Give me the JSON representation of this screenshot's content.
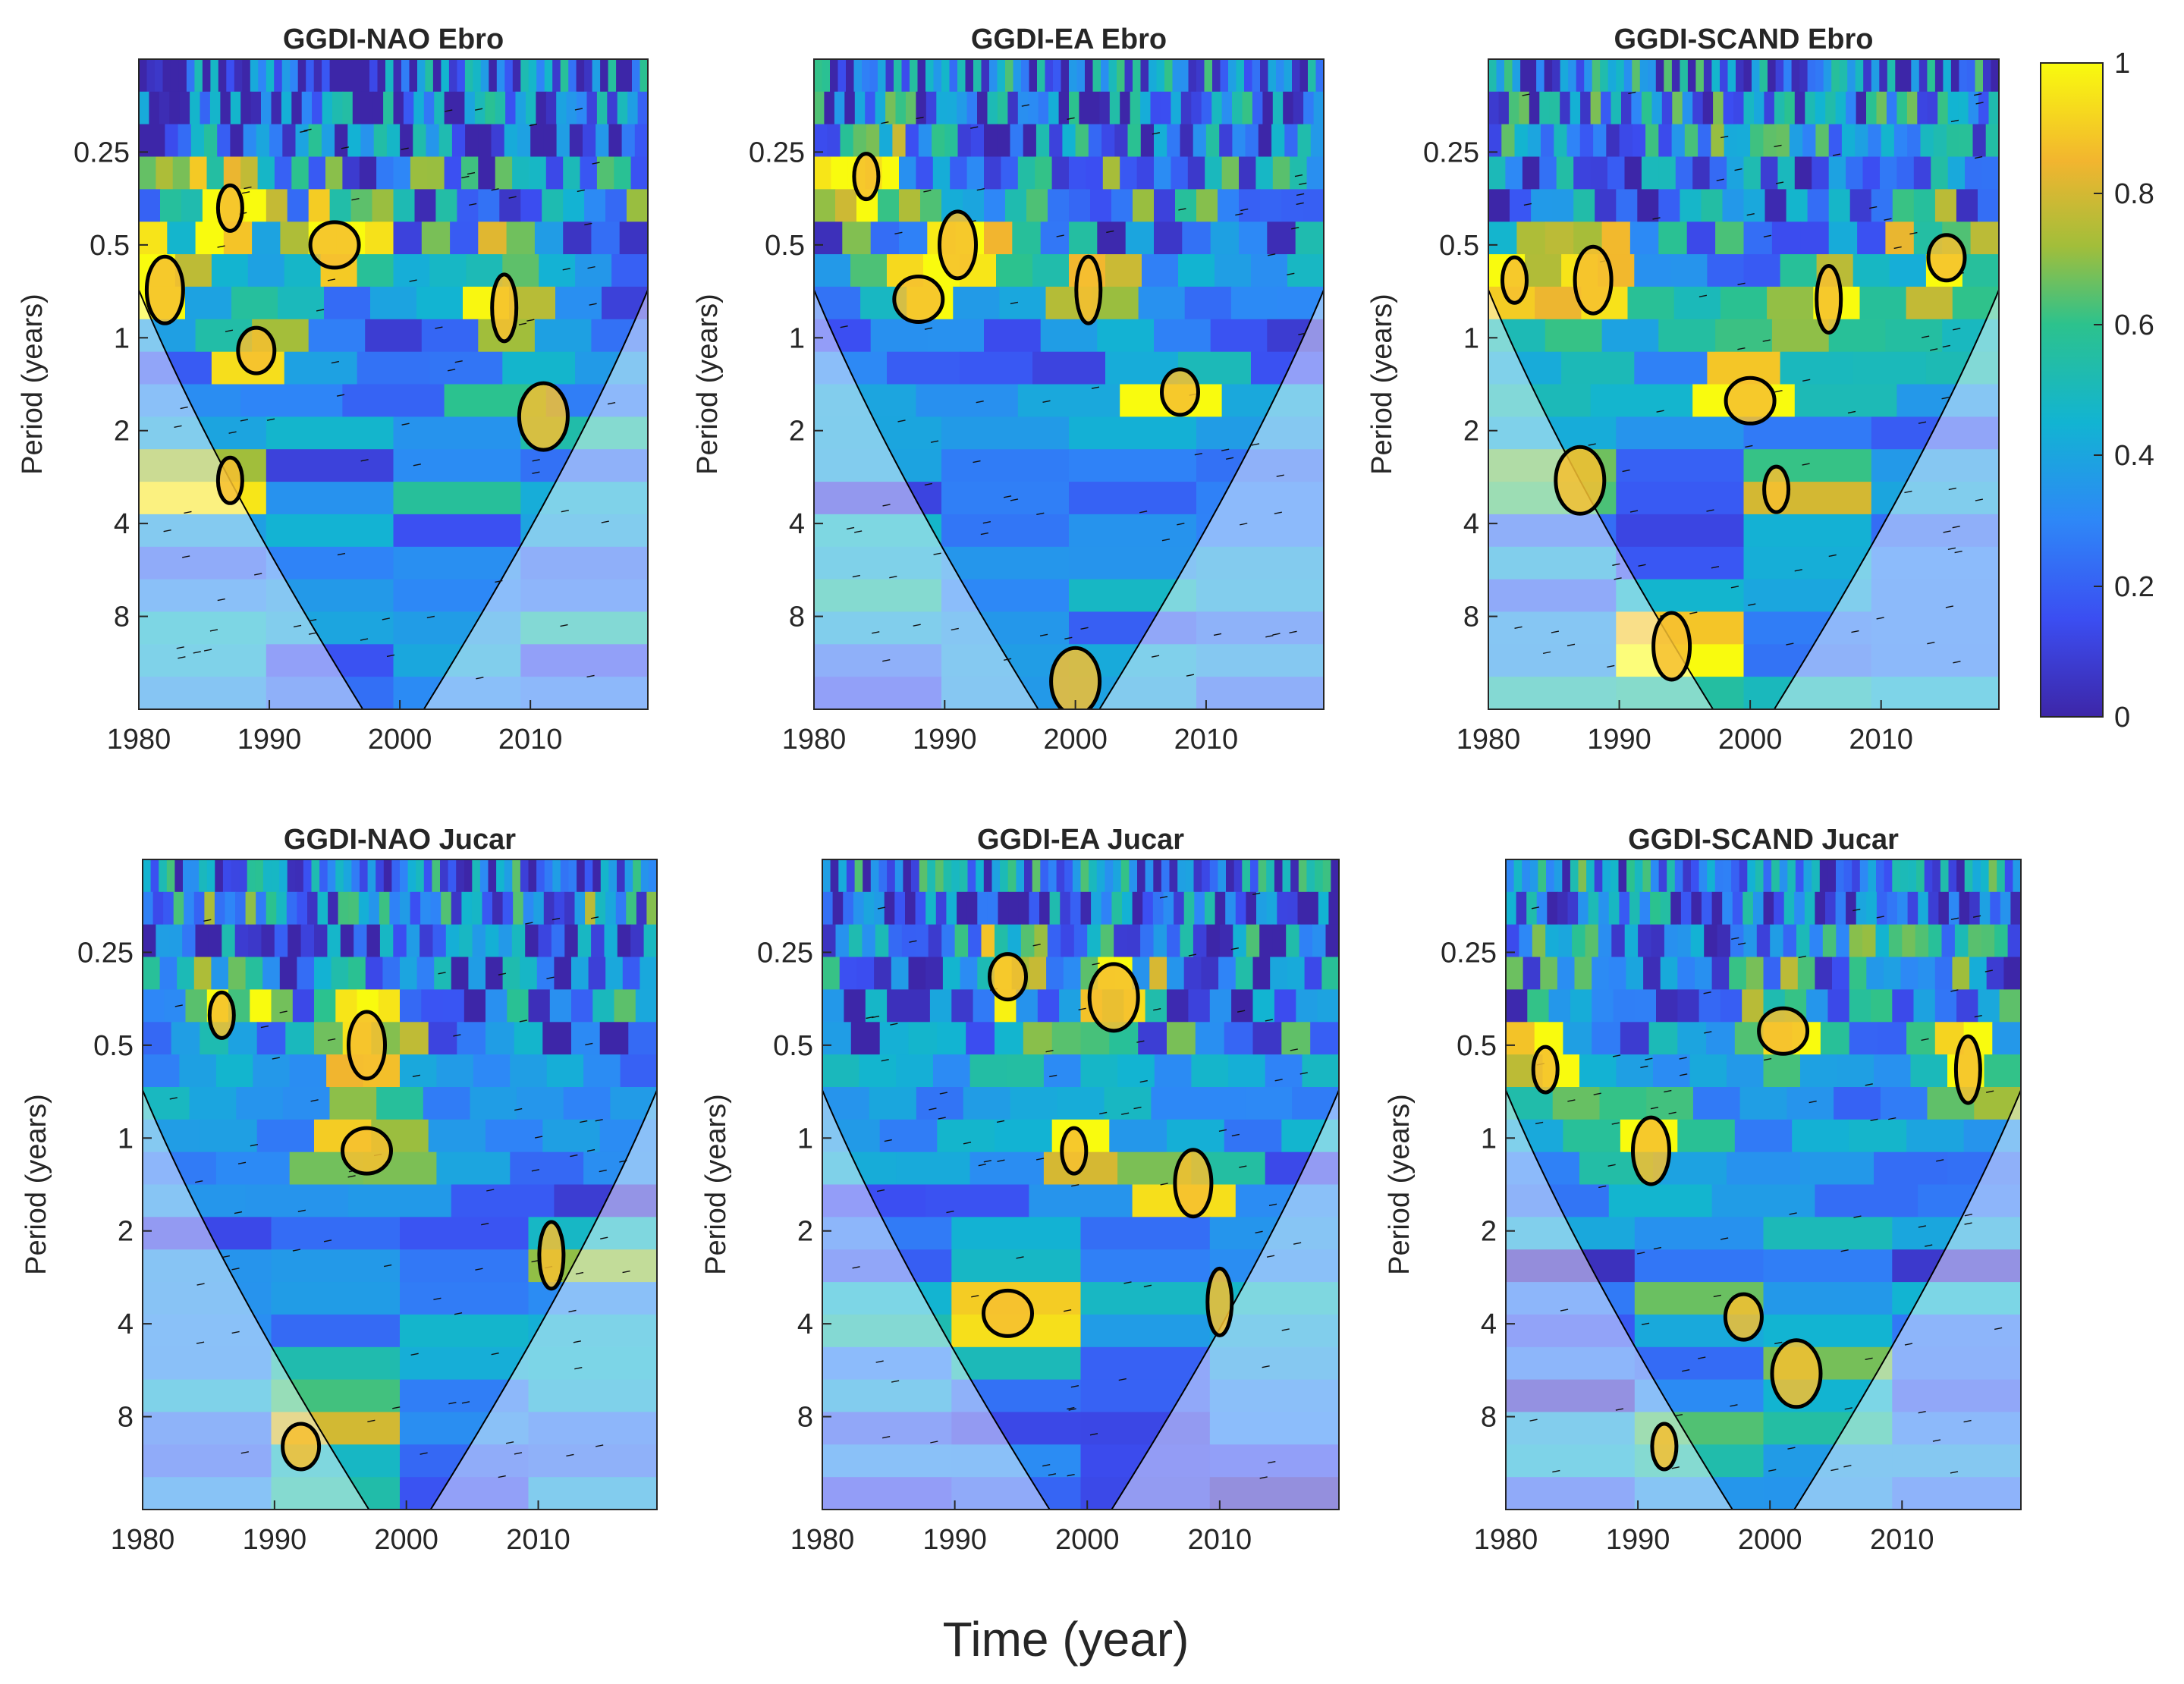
{
  "figure": {
    "xlabel": "Time (year)",
    "colorbar": {
      "ticks": [
        "1",
        "0.8",
        "0.6",
        "0.4",
        "0.2",
        "0"
      ]
    }
  },
  "chart_data": [
    {
      "type": "heatmap",
      "title": "GGDI-NAO Ebro",
      "ylabel": "Period (years)",
      "x_ticks": [
        "1980",
        "1990",
        "2000",
        "2010"
      ],
      "y_ticks": [
        "0.25",
        "0.5",
        "1",
        "2",
        "4",
        "8"
      ],
      "xlim": [
        1980,
        2019
      ],
      "ylim_period_years": [
        0.125,
        16
      ],
      "colorbar_range": [
        0,
        1
      ],
      "significant_regions": [
        {
          "year": 1987,
          "period": 0.38
        },
        {
          "year": 1982,
          "period": 0.7
        },
        {
          "year": 1995,
          "period": 0.5
        },
        {
          "year": 2008,
          "period": 0.8
        },
        {
          "year": 1989,
          "period": 1.1
        },
        {
          "year": 2011,
          "period": 1.8
        },
        {
          "year": 1987,
          "period": 2.9
        }
      ]
    },
    {
      "type": "heatmap",
      "title": "GGDI-EA Ebro",
      "ylabel": "Period (years)",
      "x_ticks": [
        "1980",
        "1990",
        "2000",
        "2010"
      ],
      "y_ticks": [
        "0.25",
        "0.5",
        "1",
        "2",
        "4",
        "8"
      ],
      "xlim": [
        1980,
        2019
      ],
      "ylim_period_years": [
        0.125,
        16
      ],
      "colorbar_range": [
        0,
        1
      ],
      "significant_regions": [
        {
          "year": 1984,
          "period": 0.3
        },
        {
          "year": 1991,
          "period": 0.5
        },
        {
          "year": 1988,
          "period": 0.75
        },
        {
          "year": 2001,
          "period": 0.7
        },
        {
          "year": 2008,
          "period": 1.5
        },
        {
          "year": 2000,
          "period": 13
        }
      ]
    },
    {
      "type": "heatmap",
      "title": "GGDI-SCAND Ebro",
      "ylabel": "Period (years)",
      "x_ticks": [
        "1980",
        "1990",
        "2000",
        "2010"
      ],
      "y_ticks": [
        "0.25",
        "0.5",
        "1",
        "2",
        "4",
        "8"
      ],
      "xlim": [
        1980,
        2019
      ],
      "ylim_period_years": [
        0.125,
        16
      ],
      "colorbar_range": [
        0,
        1
      ],
      "significant_regions": [
        {
          "year": 1982,
          "period": 0.65
        },
        {
          "year": 1988,
          "period": 0.65
        },
        {
          "year": 2000,
          "period": 1.6
        },
        {
          "year": 2006,
          "period": 0.75
        },
        {
          "year": 2015,
          "period": 0.55
        },
        {
          "year": 1987,
          "period": 2.9
        },
        {
          "year": 2002,
          "period": 3.1
        },
        {
          "year": 1994,
          "period": 10
        }
      ]
    },
    {
      "type": "heatmap",
      "title": "GGDI-NAO Jucar",
      "ylabel": "Period (years)",
      "x_ticks": [
        "1980",
        "1990",
        "2000",
        "2010"
      ],
      "y_ticks": [
        "0.25",
        "0.5",
        "1",
        "2",
        "4",
        "8"
      ],
      "xlim": [
        1980,
        2019
      ],
      "ylim_period_years": [
        0.125,
        16
      ],
      "colorbar_range": [
        0,
        1
      ],
      "significant_regions": [
        {
          "year": 1986,
          "period": 0.4
        },
        {
          "year": 1997,
          "period": 0.5
        },
        {
          "year": 1997,
          "period": 1.1
        },
        {
          "year": 2011,
          "period": 2.4
        },
        {
          "year": 1992,
          "period": 10
        }
      ]
    },
    {
      "type": "heatmap",
      "title": "GGDI-EA Jucar",
      "ylabel": "Period (years)",
      "x_ticks": [
        "1980",
        "1990",
        "2000",
        "2010"
      ],
      "y_ticks": [
        "0.25",
        "0.5",
        "1",
        "2",
        "4",
        "8"
      ],
      "xlim": [
        1980,
        2019
      ],
      "ylim_period_years": [
        0.125,
        16
      ],
      "colorbar_range": [
        0,
        1
      ],
      "significant_regions": [
        {
          "year": 1999,
          "period": 1.1
        },
        {
          "year": 2008,
          "period": 1.4
        },
        {
          "year": 1994,
          "period": 3.7
        },
        {
          "year": 2010,
          "period": 3.4
        },
        {
          "year": 1994,
          "period": 0.3
        },
        {
          "year": 2002,
          "period": 0.35
        }
      ]
    },
    {
      "type": "heatmap",
      "title": "GGDI-SCAND Jucar",
      "ylabel": "Period (years)",
      "x_ticks": [
        "1980",
        "1990",
        "2000",
        "2010"
      ],
      "y_ticks": [
        "0.25",
        "0.5",
        "1",
        "2",
        "4",
        "8"
      ],
      "xlim": [
        1980,
        2019
      ],
      "ylim_period_years": [
        0.125,
        16
      ],
      "colorbar_range": [
        0,
        1
      ],
      "significant_regions": [
        {
          "year": 1983,
          "period": 0.6
        },
        {
          "year": 1991,
          "period": 1.1
        },
        {
          "year": 2001,
          "period": 0.45
        },
        {
          "year": 2015,
          "period": 0.6
        },
        {
          "year": 1998,
          "period": 3.8
        },
        {
          "year": 2002,
          "period": 5.8
        },
        {
          "year": 1992,
          "period": 10
        }
      ]
    }
  ]
}
